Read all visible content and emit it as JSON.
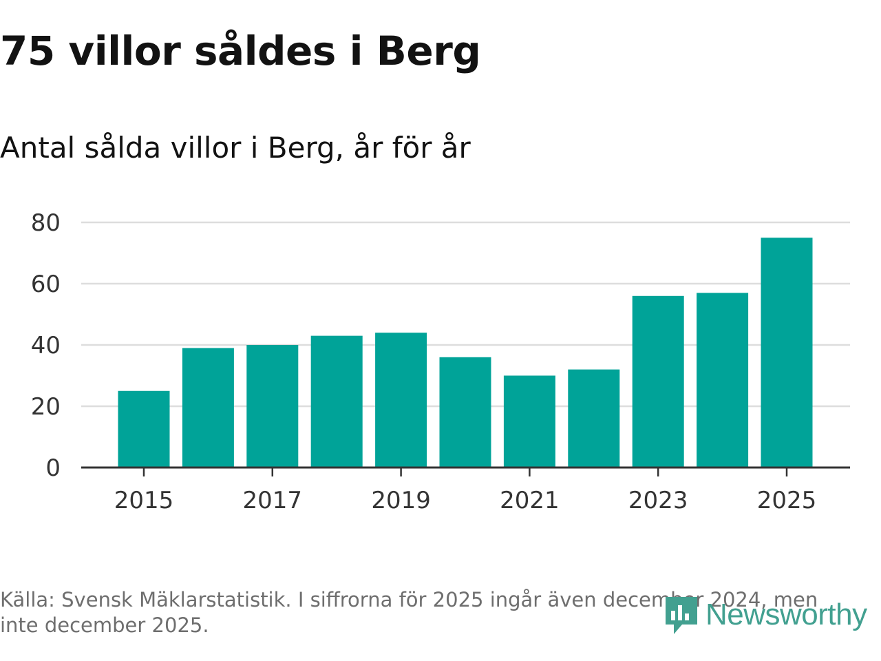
{
  "title": "75 villor såldes i Berg",
  "subtitle": "Antal sålda villor i Berg, år för år",
  "chart_data": {
    "type": "bar",
    "title": "Antal sålda villor i Berg, år för år",
    "categories": [
      2015,
      2016,
      2017,
      2018,
      2019,
      2020,
      2021,
      2022,
      2023,
      2024,
      2025
    ],
    "values": [
      25,
      39,
      40,
      43,
      44,
      36,
      30,
      32,
      56,
      57,
      75
    ],
    "x_tick_labels": [
      "2015",
      "2017",
      "2019",
      "2021",
      "2023",
      "2025"
    ],
    "y_ticks": [
      0,
      20,
      40,
      60,
      80
    ],
    "ylim": [
      0,
      80
    ],
    "xlabel": "",
    "ylabel": "",
    "grid": true,
    "bar_color": "#00a398"
  },
  "footer": {
    "source": "Källa: Svensk Mäklarstatistik. I siffrorna för 2025 ingår även december 2024, men inte december 2025.",
    "brand": "Newsworthy",
    "brand_icon": "newsworthy-logo-icon",
    "brand_color": "#42a090"
  }
}
